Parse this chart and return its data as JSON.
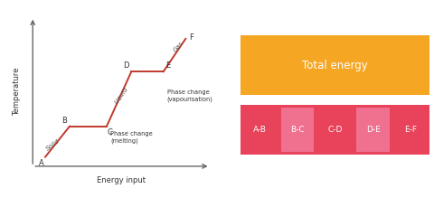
{
  "graph": {
    "line_color": "#c0392b",
    "axis_color": "#666666",
    "points": {
      "A": [
        0.5,
        0.5
      ],
      "B": [
        1.5,
        2.2
      ],
      "C": [
        3.0,
        2.2
      ],
      "D": [
        4.0,
        5.2
      ],
      "E": [
        5.3,
        5.2
      ],
      "F": [
        6.2,
        7.0
      ]
    },
    "xlabel": "Energy input",
    "ylabel": "Temperature",
    "label_solid": "Solid",
    "label_liquid": "Liquid",
    "label_gas": "Gas",
    "label_melting": "Phase change\n(melting)",
    "label_vapour": "Phase change\n(vapourisation)"
  },
  "bar_model": {
    "total_label": "Total energy",
    "total_color": "#f5a623",
    "total_text_color": "#ffffff",
    "segments": [
      "A-B",
      "B-C",
      "C-D",
      "D-E",
      "E-F"
    ],
    "seg_bg_colors": [
      "#e8435a",
      "#f07090",
      "#e8435a",
      "#f07090",
      "#e8435a"
    ],
    "seg_text_color": "#ffffff"
  }
}
